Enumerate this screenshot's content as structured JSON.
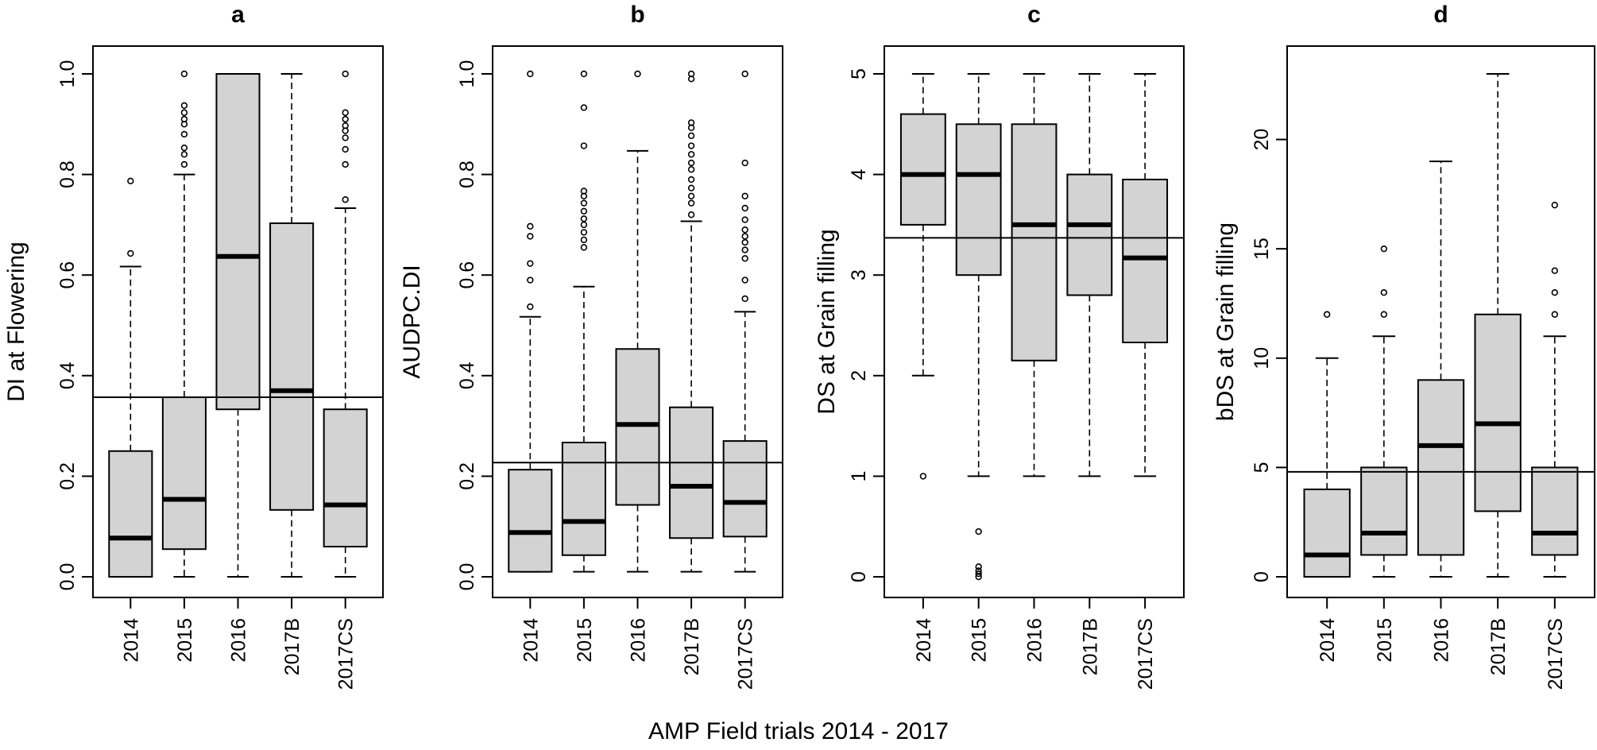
{
  "figure_xlabel": "AMP Field trials 2014 - 2017",
  "chart_data": [
    {
      "type": "box",
      "panel": "a",
      "ylabel": "DI at Flowering",
      "ylim": [
        0,
        1
      ],
      "yticks": [
        0.0,
        0.2,
        0.4,
        0.6,
        0.8,
        1.0
      ],
      "ytick_labels": [
        "0.0",
        "0.2",
        "0.4",
        "0.6",
        "0.8",
        "1.0"
      ],
      "categories": [
        "2014",
        "2015",
        "2016",
        "2017B",
        "2017CS"
      ],
      "reference_line": 0.357,
      "boxes": [
        {
          "low": 0.0,
          "q1": 0.0,
          "median": 0.077,
          "q3": 0.25,
          "high": 0.617,
          "outliers": [
            0.643,
            0.787
          ]
        },
        {
          "low": 0.0,
          "q1": 0.055,
          "median": 0.154,
          "q3": 0.357,
          "high": 0.8,
          "outliers": [
            0.82,
            0.84,
            0.853,
            0.88,
            0.9,
            0.91,
            0.923,
            0.937,
            1.0
          ]
        },
        {
          "low": 0.0,
          "q1": 0.333,
          "median": 0.637,
          "q3": 1.0,
          "high": 1.0,
          "outliers": []
        },
        {
          "low": 0.0,
          "q1": 0.133,
          "median": 0.37,
          "q3": 0.703,
          "high": 1.0,
          "outliers": []
        },
        {
          "low": 0.0,
          "q1": 0.06,
          "median": 0.143,
          "q3": 0.333,
          "high": 0.733,
          "outliers": [
            0.75,
            0.82,
            0.85,
            0.873,
            0.887,
            0.897,
            0.91,
            0.923,
            1.0
          ]
        }
      ]
    },
    {
      "type": "box",
      "panel": "b",
      "ylabel": "AUDPC.DI",
      "ylim": [
        0,
        1
      ],
      "yticks": [
        0.0,
        0.2,
        0.4,
        0.6,
        0.8,
        1.0
      ],
      "ytick_labels": [
        "0.0",
        "0.2",
        "0.4",
        "0.6",
        "0.8",
        "1.0"
      ],
      "categories": [
        "2014",
        "2015",
        "2016",
        "2017B",
        "2017CS"
      ],
      "reference_line": 0.227,
      "boxes": [
        {
          "low": 0.01,
          "q1": 0.01,
          "median": 0.088,
          "q3": 0.213,
          "high": 0.517,
          "outliers": [
            0.537,
            0.59,
            0.623,
            0.677,
            0.697,
            1.0
          ]
        },
        {
          "low": 0.01,
          "q1": 0.043,
          "median": 0.11,
          "q3": 0.267,
          "high": 0.577,
          "outliers": [
            0.655,
            0.67,
            0.685,
            0.7,
            0.712,
            0.727,
            0.743,
            0.757,
            0.767,
            0.857,
            0.933,
            1.0
          ]
        },
        {
          "low": 0.01,
          "q1": 0.143,
          "median": 0.303,
          "q3": 0.453,
          "high": 0.847,
          "outliers": [
            1.0
          ]
        },
        {
          "low": 0.01,
          "q1": 0.077,
          "median": 0.18,
          "q3": 0.337,
          "high": 0.707,
          "outliers": [
            0.72,
            0.743,
            0.757,
            0.773,
            0.79,
            0.81,
            0.823,
            0.84,
            0.857,
            0.877,
            0.893,
            0.903,
            0.99,
            1.0
          ]
        },
        {
          "low": 0.01,
          "q1": 0.08,
          "median": 0.148,
          "q3": 0.27,
          "high": 0.527,
          "outliers": [
            0.553,
            0.59,
            0.633,
            0.65,
            0.665,
            0.677,
            0.69,
            0.71,
            0.733,
            0.757,
            0.823,
            1.0
          ]
        }
      ]
    },
    {
      "type": "box",
      "panel": "c",
      "ylabel": "DS at Grain filling",
      "ylim": [
        0,
        5
      ],
      "yticks": [
        0,
        1,
        2,
        3,
        4,
        5
      ],
      "ytick_labels": [
        "0",
        "1",
        "2",
        "3",
        "4",
        "5"
      ],
      "categories": [
        "2014",
        "2015",
        "2016",
        "2017B",
        "2017CS"
      ],
      "reference_line": 3.37,
      "boxes": [
        {
          "low": 2.0,
          "q1": 3.5,
          "median": 4.0,
          "q3": 4.6,
          "high": 5.0,
          "outliers": [
            1.0
          ]
        },
        {
          "low": 1.0,
          "q1": 3.0,
          "median": 4.0,
          "q3": 4.5,
          "high": 5.0,
          "outliers": [
            0.0,
            0.03,
            0.06,
            0.1,
            0.45
          ]
        },
        {
          "low": 1.0,
          "q1": 2.15,
          "median": 3.5,
          "q3": 4.5,
          "high": 5.0,
          "outliers": []
        },
        {
          "low": 1.0,
          "q1": 2.8,
          "median": 3.5,
          "q3": 4.0,
          "high": 5.0,
          "outliers": []
        },
        {
          "low": 1.0,
          "q1": 2.33,
          "median": 3.17,
          "q3": 3.95,
          "high": 5.0,
          "outliers": []
        }
      ]
    },
    {
      "type": "box",
      "panel": "d",
      "ylabel": "bDS at Grain filling",
      "ylim": [
        0,
        23
      ],
      "yticks": [
        0,
        5,
        10,
        15,
        20
      ],
      "ytick_labels": [
        "0",
        "5",
        "10",
        "15",
        "20"
      ],
      "categories": [
        "2014",
        "2015",
        "2016",
        "2017B",
        "2017CS"
      ],
      "reference_line": 4.8,
      "boxes": [
        {
          "low": 0,
          "q1": 0,
          "median": 1,
          "q3": 4,
          "high": 10,
          "outliers": [
            12
          ]
        },
        {
          "low": 0,
          "q1": 1,
          "median": 2,
          "q3": 5,
          "high": 11,
          "outliers": [
            12,
            13,
            15
          ]
        },
        {
          "low": 0,
          "q1": 1,
          "median": 6,
          "q3": 9,
          "high": 19,
          "outliers": []
        },
        {
          "low": 0,
          "q1": 3,
          "median": 7,
          "q3": 12,
          "high": 23,
          "outliers": []
        },
        {
          "low": 0,
          "q1": 1,
          "median": 2,
          "q3": 5,
          "high": 11,
          "outliers": [
            12,
            13,
            14,
            17
          ]
        }
      ]
    }
  ]
}
